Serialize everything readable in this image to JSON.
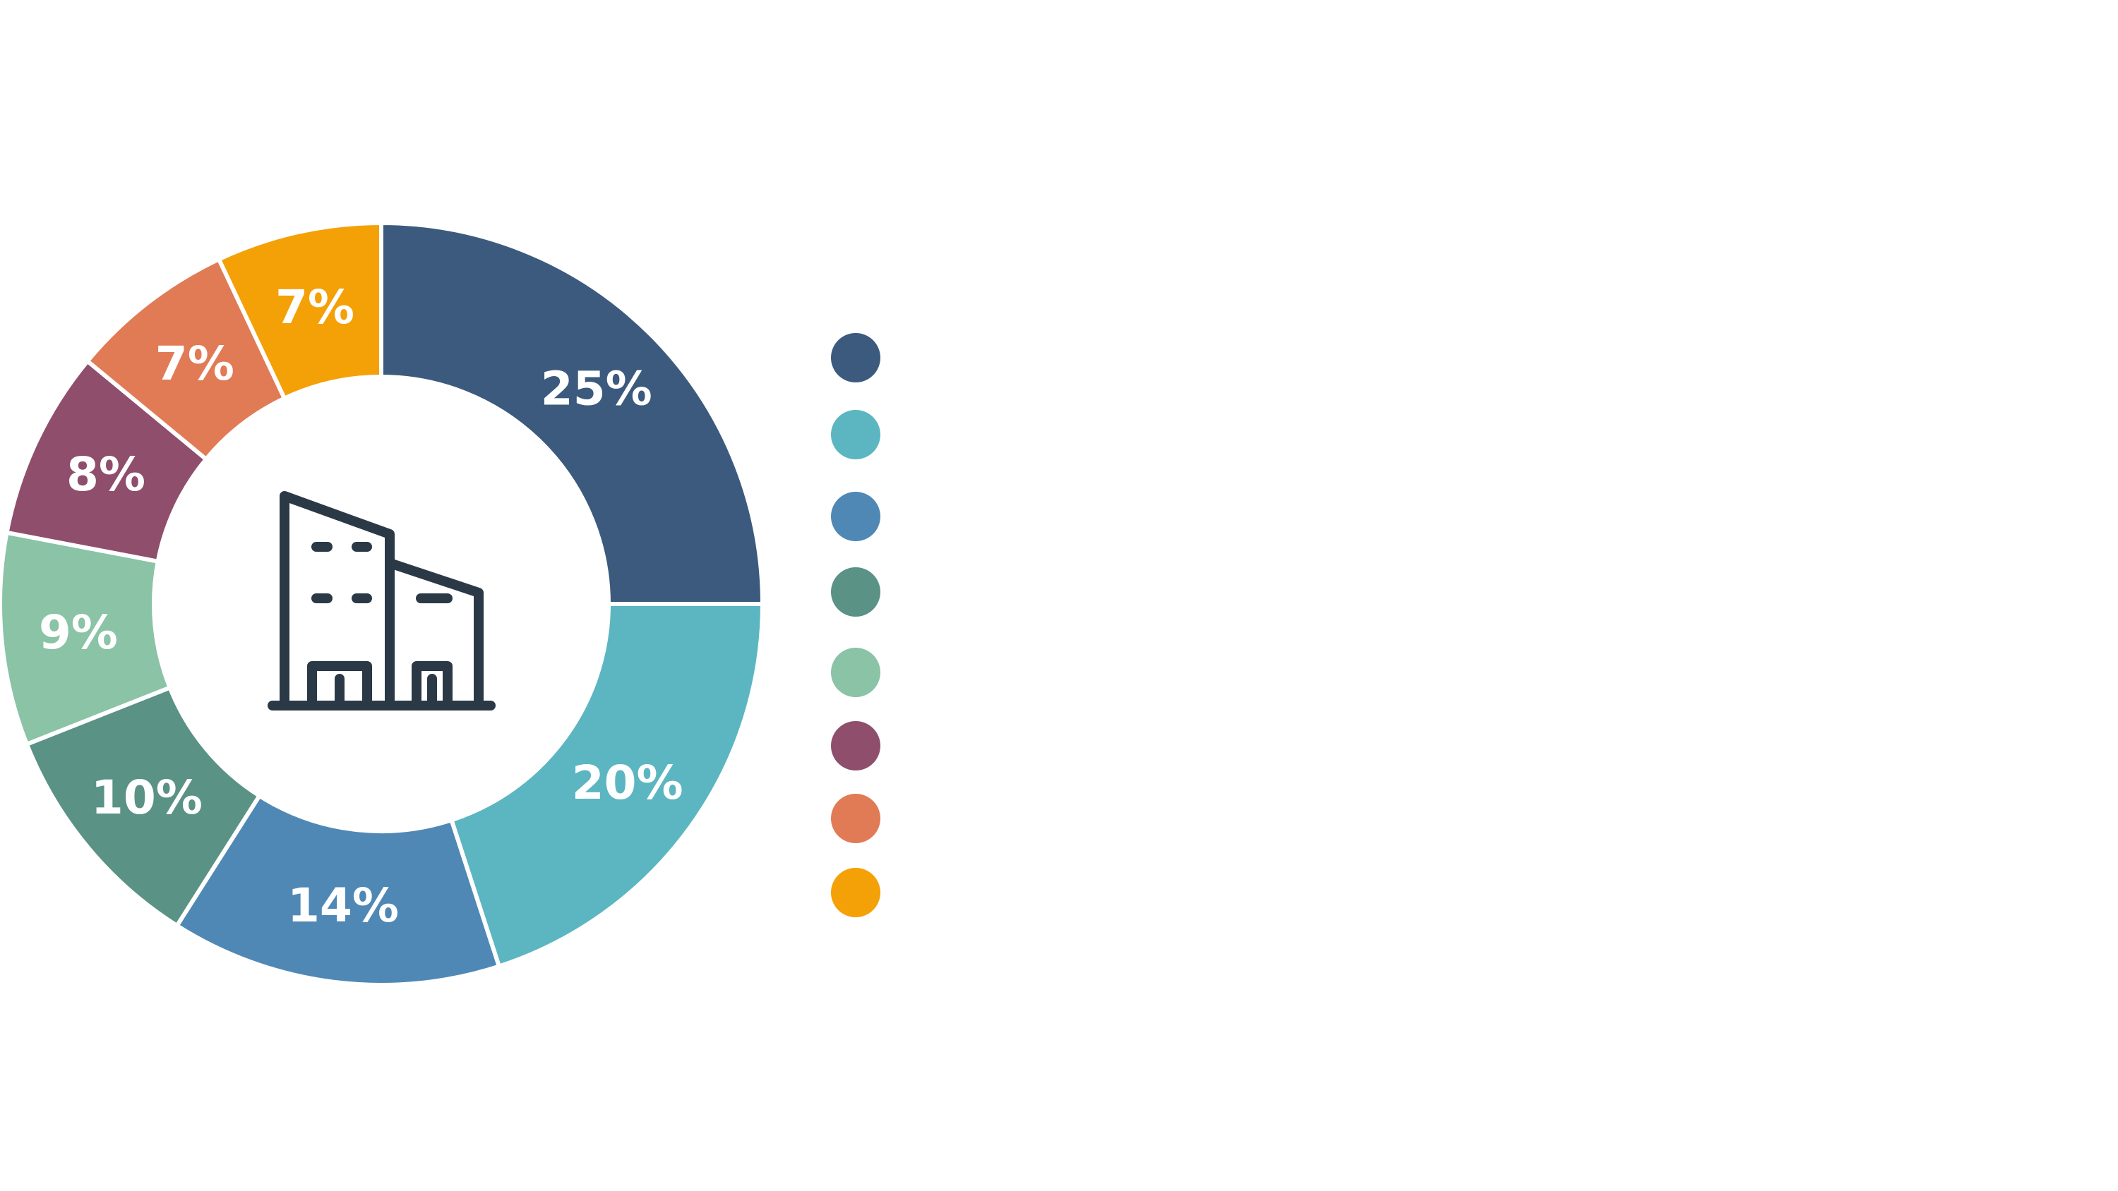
{
  "chart_data": {
    "type": "pie",
    "subtype": "donut",
    "values": [
      25,
      20,
      14,
      10,
      9,
      8,
      7,
      7
    ],
    "labels": [
      "25%",
      "20%",
      "14%",
      "10%",
      "9%",
      "8%",
      "7%",
      "7%"
    ],
    "colors": [
      "#3b5a7d",
      "#5bb6c1",
      "#4f88b5",
      "#5a9285",
      "#8ac3a5",
      "#8e4e6c",
      "#e17b55",
      "#f4a007"
    ],
    "legend": {
      "placement": "right",
      "markers": [
        "#3b5a7d",
        "#5bb6c1",
        "#4f88b5",
        "#5a9285",
        "#8ac3a5",
        "#8e4e6c",
        "#e17b55",
        "#f4a007"
      ]
    },
    "center_icon": "office-building-icon",
    "title": "",
    "xlabel": "",
    "ylabel": ""
  }
}
